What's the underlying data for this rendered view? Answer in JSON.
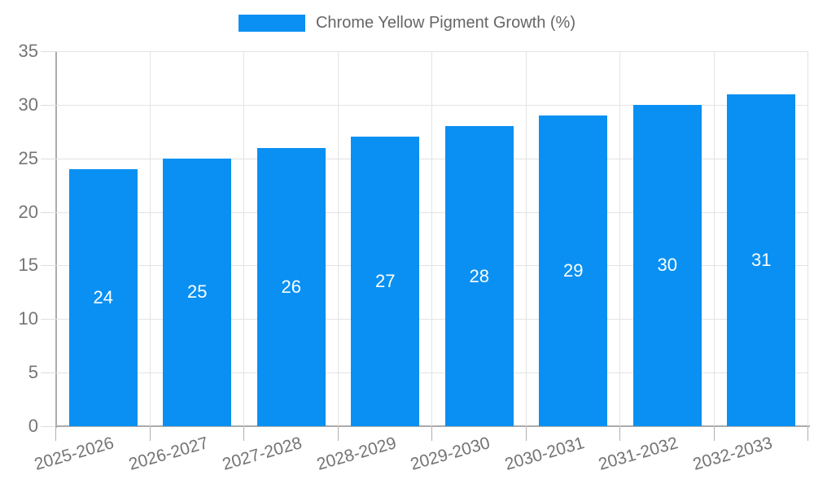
{
  "legend": {
    "label": "Chrome Yellow Pigment Growth (%)"
  },
  "chart_data": {
    "type": "bar",
    "title": "",
    "series_name": "Chrome Yellow Pigment Growth (%)",
    "categories": [
      "2025-2026",
      "2026-2027",
      "2027-2028",
      "2028-2029",
      "2029-2030",
      "2030-2031",
      "2031-2032",
      "2032-2033"
    ],
    "values": [
      24,
      25,
      26,
      27,
      28,
      29,
      30,
      31
    ],
    "value_labels_shown": [
      "24",
      "25",
      "26",
      "27",
      "28",
      "29",
      "30",
      "31"
    ],
    "value_label_position": "inside-center",
    "xlabel": "",
    "ylabel": "",
    "ylim": [
      0,
      35
    ],
    "yticks": [
      0,
      5,
      10,
      15,
      20,
      25,
      30,
      35
    ],
    "grid": true,
    "legend_position": "top-center",
    "x_label_rotation_deg": -16,
    "colors": {
      "bar": "#0a90f2",
      "value_label": "#ffffff",
      "gridline": "#e3e3e3",
      "tick_mark_y": "#dddddd",
      "tick_mark_x": "#b0b0b0",
      "axis_line": "#ababab",
      "axis_tick_label": "#757575",
      "legend_text": "#666666",
      "background": "#ffffff"
    }
  }
}
